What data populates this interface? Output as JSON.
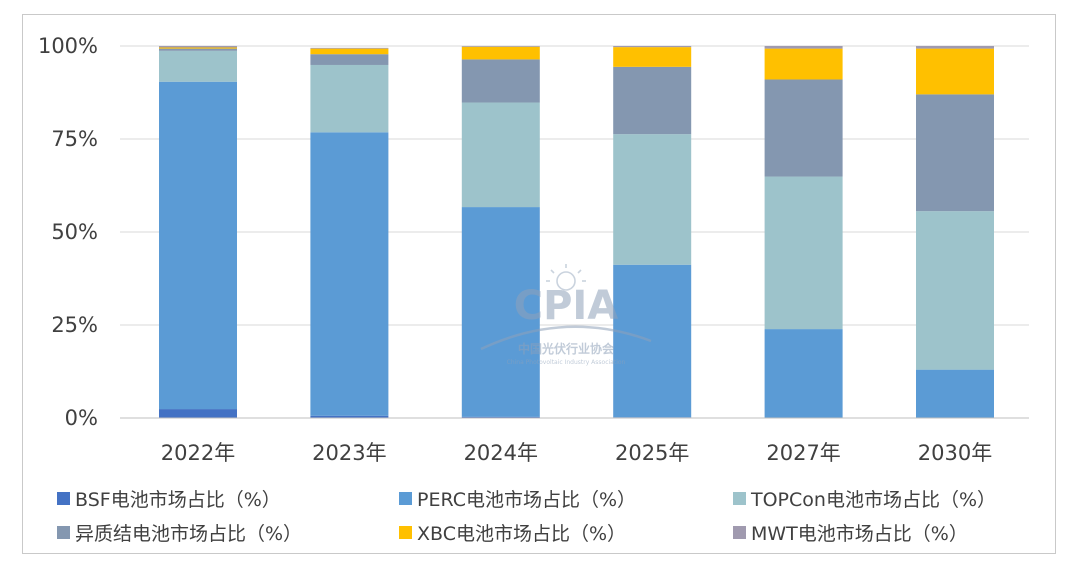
{
  "chart_data": {
    "type": "bar",
    "stacked": true,
    "percent": true,
    "categories": [
      "2022年",
      "2023年",
      "2024年",
      "2025年",
      "2027年",
      "2030年"
    ],
    "ylim": [
      0,
      100
    ],
    "yticks": [
      "0%",
      "25%",
      "50%",
      "75%",
      "100%"
    ],
    "ytick_values": [
      0,
      25,
      50,
      75,
      100
    ],
    "grid": true,
    "legend_position": "bottom",
    "series": [
      {
        "name": "BSF电池市场占比（%）",
        "color": "#4472C4",
        "values": [
          2.4,
          0.6,
          0.3,
          0.2,
          0.1,
          0.1
        ]
      },
      {
        "name": "PERC电池市场占比（%）",
        "color": "#5B9BD5",
        "values": [
          88.0,
          76.2,
          56.4,
          41.0,
          23.8,
          12.9
        ]
      },
      {
        "name": "TOPCon电池市场占比（%）",
        "color": "#9DC3CB",
        "values": [
          8.3,
          18.1,
          28.1,
          35.1,
          41.0,
          42.6
        ]
      },
      {
        "name": "异质结电池市场占比（%）",
        "color": "#8497B0",
        "values": [
          0.6,
          2.9,
          11.6,
          18.1,
          26.1,
          31.4
        ]
      },
      {
        "name": "XBC电池市场占比（%）",
        "color": "#FFC000",
        "values": [
          0.3,
          1.5,
          3.4,
          5.3,
          8.3,
          12.3
        ]
      },
      {
        "name": "MWT电池市场占比（%）",
        "color": "#A09AAF",
        "values": [
          0.4,
          0.2,
          0.2,
          0.3,
          0.7,
          0.7
        ]
      }
    ]
  },
  "watermark": {
    "logo_text": "CPIA",
    "name_cn": "中国光伏行业协会",
    "name_en": "China Photovoltaic Industry Association"
  }
}
